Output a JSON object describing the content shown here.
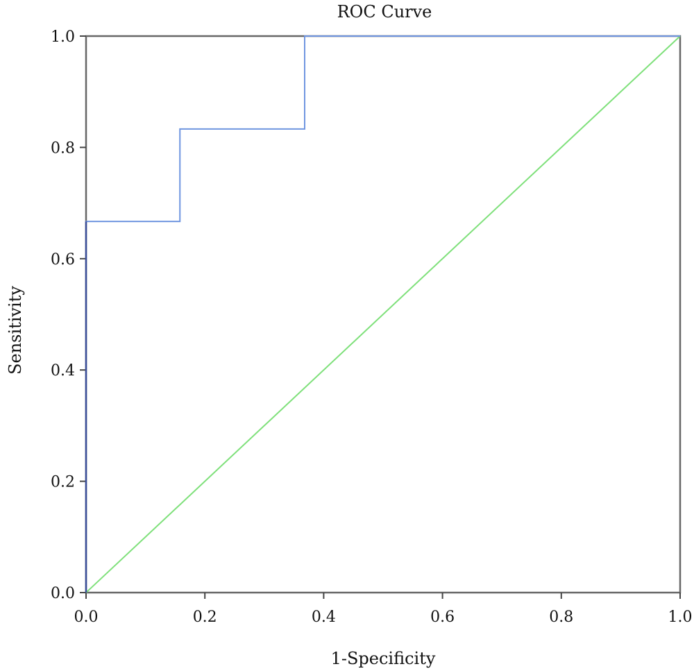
{
  "chart_data": {
    "type": "line",
    "title": "ROC Curve",
    "xlabel": "1-Specificity",
    "ylabel": "Sensitivity",
    "xlim": [
      0,
      1
    ],
    "ylim": [
      0,
      1
    ],
    "x_ticks": [
      "0.0",
      "0.2",
      "0.4",
      "0.6",
      "0.8",
      "1.0"
    ],
    "y_ticks": [
      "0.0",
      "0.2",
      "0.4",
      "0.6",
      "0.8",
      "1.0"
    ],
    "grid": false,
    "legend": "none",
    "series": [
      {
        "kind": "step",
        "color": "#6f95e0",
        "x": [
          0.0,
          0.0,
          0.158,
          0.158,
          0.368,
          0.368,
          1.0
        ],
        "y": [
          0.0,
          0.667,
          0.667,
          0.833,
          0.833,
          1.0,
          1.0
        ]
      },
      {
        "kind": "reference-diagonal",
        "color": "#7ee07a",
        "x": [
          0.0,
          1.0
        ],
        "y": [
          0.0,
          1.0
        ]
      }
    ],
    "frame_color": "#666666"
  }
}
